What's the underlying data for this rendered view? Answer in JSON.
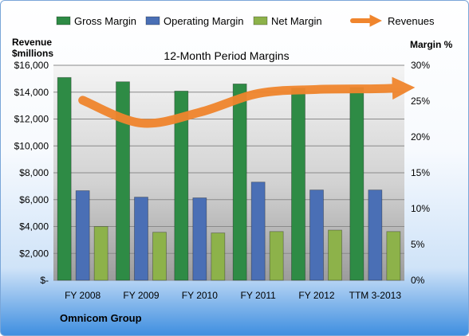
{
  "chart_data": {
    "type": "bar",
    "title": "12-Month Period Margins",
    "company": "Omnicom Group",
    "ylabel_left": [
      "Revenue",
      "$millions"
    ],
    "ylabel_right": "Margin %",
    "categories": [
      "FY 2008",
      "FY 2009",
      "FY 2010",
      "FY 2011",
      "FY 2012",
      "TTM 3-2013"
    ],
    "left_axis": {
      "ylim": [
        0,
        16000
      ],
      "ticks": [
        0,
        2000,
        4000,
        6000,
        8000,
        10000,
        12000,
        14000,
        16000
      ],
      "tick_labels": [
        "$-",
        "$2,000",
        "$4,000",
        "$6,000",
        "$8,000",
        "$10,000",
        "$12,000",
        "$14,000",
        "$16,000"
      ]
    },
    "right_axis": {
      "ylim": [
        0,
        30
      ],
      "ticks": [
        0,
        5,
        10,
        15,
        20,
        25,
        30
      ],
      "tick_labels": [
        "0%",
        "5%",
        "10%",
        "15%",
        "20%",
        "25%",
        "30%"
      ]
    },
    "series": [
      {
        "name": "Gross Margin",
        "kind": "bar",
        "axis": "right",
        "color": "#2e8b45",
        "values": [
          28.3,
          27.7,
          26.4,
          27.4,
          26.8,
          26.9
        ]
      },
      {
        "name": "Operating Margin",
        "kind": "bar",
        "axis": "right",
        "color": "#4a6fb5",
        "values": [
          12.5,
          11.6,
          11.5,
          13.7,
          12.6,
          12.6
        ]
      },
      {
        "name": "Net Margin",
        "kind": "bar",
        "axis": "right",
        "color": "#8db24a",
        "values": [
          7.5,
          6.7,
          6.6,
          6.8,
          7.0,
          6.8
        ]
      },
      {
        "name": "Revenues",
        "kind": "line",
        "axis": "left",
        "color": "#f0852d",
        "values": [
          13400,
          11700,
          12500,
          13900,
          14200,
          14250
        ]
      }
    ],
    "grid": true,
    "legend_position": "top"
  }
}
